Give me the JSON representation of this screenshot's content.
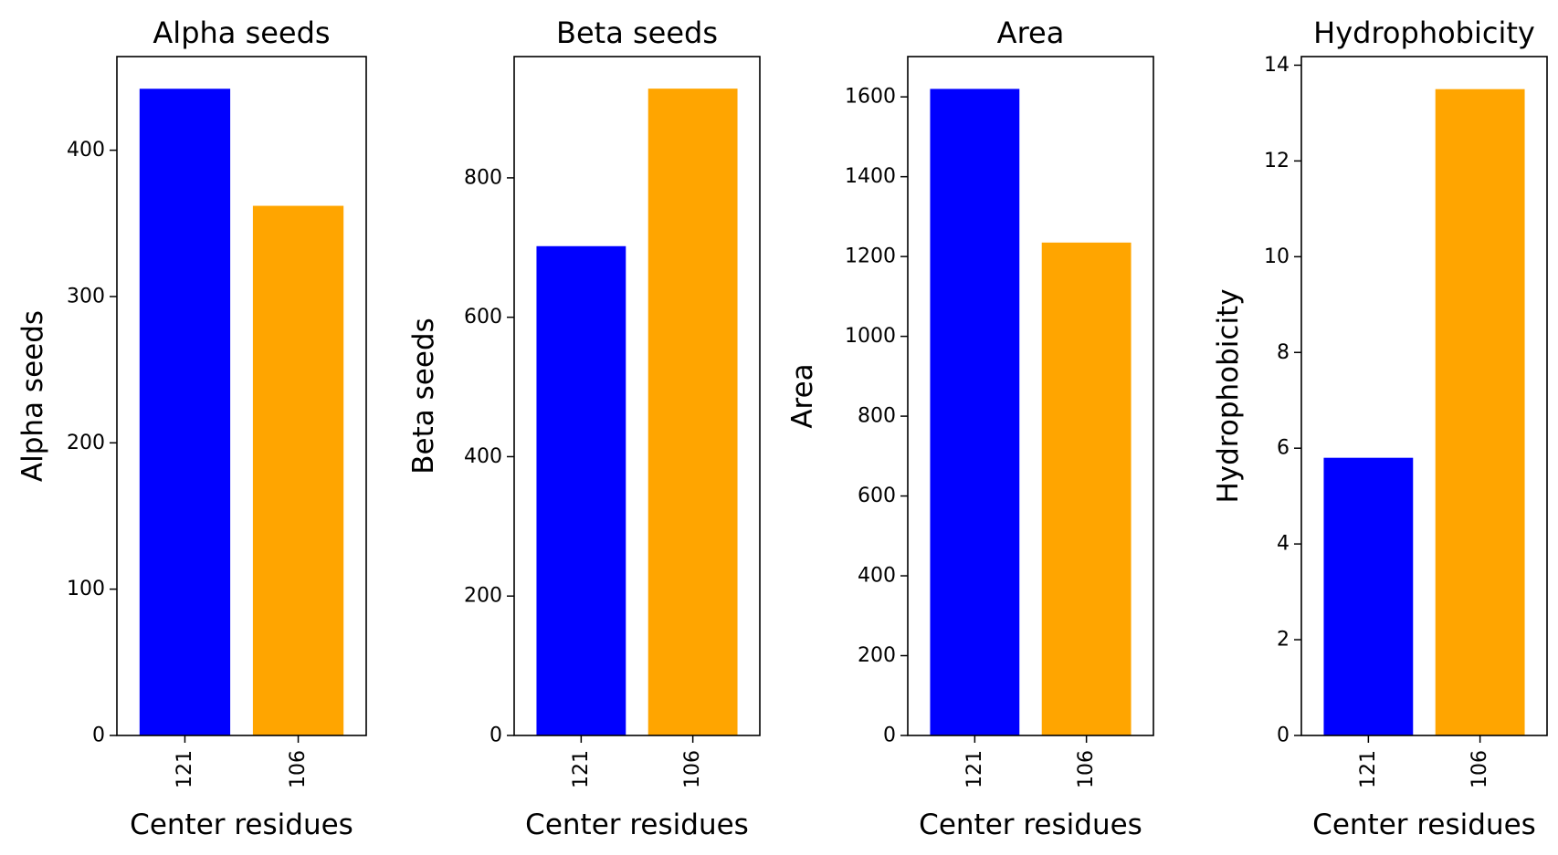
{
  "chart_data": [
    {
      "type": "bar",
      "title": "Alpha seeds",
      "xlabel": "Center residues",
      "ylabel": "Alpha seeds",
      "categories": [
        "121",
        "106"
      ],
      "values": [
        442,
        362
      ],
      "colors": [
        "#0000ff",
        "#ffa500"
      ],
      "ylim": [
        0,
        464
      ],
      "yticks": [
        0,
        100,
        200,
        300,
        400
      ]
    },
    {
      "type": "bar",
      "title": "Beta seeds",
      "xlabel": "Center residues",
      "ylabel": "Beta seeds",
      "categories": [
        "121",
        "106"
      ],
      "values": [
        702,
        928
      ],
      "colors": [
        "#0000ff",
        "#ffa500"
      ],
      "ylim": [
        0,
        974
      ],
      "yticks": [
        0,
        200,
        400,
        600,
        800
      ]
    },
    {
      "type": "bar",
      "title": "Area",
      "xlabel": "Center residues",
      "ylabel": "Area",
      "categories": [
        "121",
        "106"
      ],
      "values": [
        1620,
        1235
      ],
      "colors": [
        "#0000ff",
        "#ffa500"
      ],
      "ylim": [
        0,
        1701
      ],
      "yticks": [
        0,
        200,
        400,
        600,
        800,
        1000,
        1200,
        1400,
        1600
      ]
    },
    {
      "type": "bar",
      "title": "Hydrophobicity",
      "xlabel": "Center residues",
      "ylabel": "Hydrophobicity",
      "categories": [
        "121",
        "106"
      ],
      "values": [
        5.8,
        13.5
      ],
      "colors": [
        "#0000ff",
        "#ffa500"
      ],
      "ylim": [
        0,
        14.18
      ],
      "yticks": [
        0,
        2,
        4,
        6,
        8,
        10,
        12,
        14
      ]
    }
  ]
}
